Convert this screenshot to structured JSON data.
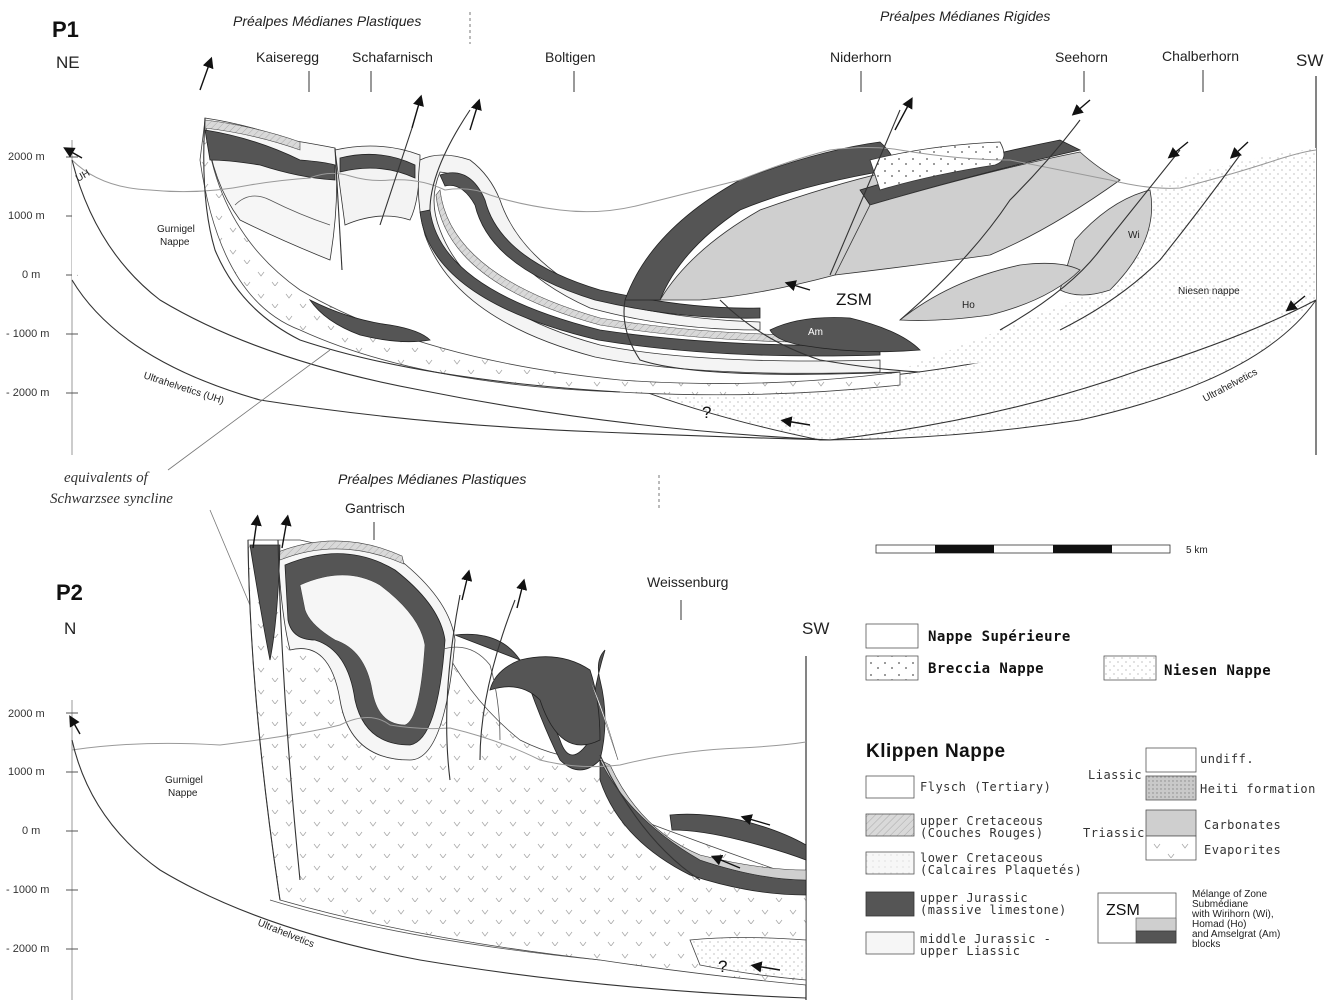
{
  "colors": {
    "flysch": "#ffffff",
    "upper_cretaceous": "#d2d2d2",
    "lower_cretaceous": "#f1f1f1",
    "upper_jurassic": "#555555",
    "middle_jurassic": "#f6f6f6",
    "carbonates": "#cfcfcf",
    "heiti": "#bdbdbd",
    "niesen": "#fafafa"
  },
  "p1": {
    "title": "P1",
    "left_dir": "NE",
    "right_dir": "SW",
    "domain_plastic": "Préalpes Médianes Plastiques",
    "domain_rigid": "Préalpes Médianes Rigides",
    "peaks": [
      "Kaiseregg",
      "Schafarnisch",
      "Boltigen",
      "Niderhorn",
      "Seehorn",
      "Chalberhorn"
    ],
    "axis": [
      "2000 m",
      "1000 m",
      "0 m",
      "- 1000 m",
      "- 2000 m"
    ],
    "labels": {
      "uh": "UH",
      "gurnigel_1": "Gurnigel",
      "gurnigel_2": "Nappe",
      "ultrahelvetics_uh": "Ultrahelvetics (UH)",
      "ultrahelvetics": "Ultrahelvetics",
      "zsm": "ZSM",
      "am": "Am",
      "ho": "Ho",
      "wi": "Wi",
      "niesen": "Niesen nappe",
      "question": "?"
    }
  },
  "annotation": {
    "line1": "equivalents of",
    "line2": "Schwarzsee syncline"
  },
  "p2": {
    "title": "P2",
    "left_dir": "N",
    "right_dir": "SW",
    "domain_plastic": "Préalpes Médianes Plastiques",
    "peaks": [
      "Gantrisch",
      "Weissenburg"
    ],
    "axis": [
      "2000 m",
      "1000 m",
      "0 m",
      "- 1000 m",
      "- 2000 m"
    ],
    "labels": {
      "gurnigel_1": "Gurnigel",
      "gurnigel_2": "Nappe",
      "ultrahelvetics": "Ultrahelvetics",
      "question": "?"
    }
  },
  "scale": {
    "label": "5 km"
  },
  "legend": {
    "nappe_superieure": "Nappe Supérieure",
    "breccia": "Breccia Nappe",
    "niesen": "Niesen Nappe",
    "klippen_title": "Klippen Nappe",
    "flysch": "Flysch (Tertiary)",
    "upper_cret_1": "upper Cretaceous",
    "upper_cret_2": "(Couches Rouges)",
    "lower_cret_1": "lower Cretaceous",
    "lower_cret_2": "(Calcaires Plaquetés)",
    "upper_jur_1": "upper Jurassic",
    "upper_jur_2": "(massive limestone)",
    "middle_jur_1": "middle Jurassic -",
    "middle_jur_2": "upper Liassic",
    "liassic": "Liassic",
    "undiff": "undiff.",
    "heiti": "Heiti formation",
    "triassic": "Triassic",
    "carbonates": "Carbonates",
    "evaporites": "Evaporites",
    "zsm": "ZSM",
    "zsm_desc": [
      "Mélange of Zone",
      "Submédiane",
      "with Wirihorn (Wi),",
      "Homad (Ho)",
      "and Amselgrat (Am)",
      "blocks"
    ]
  }
}
